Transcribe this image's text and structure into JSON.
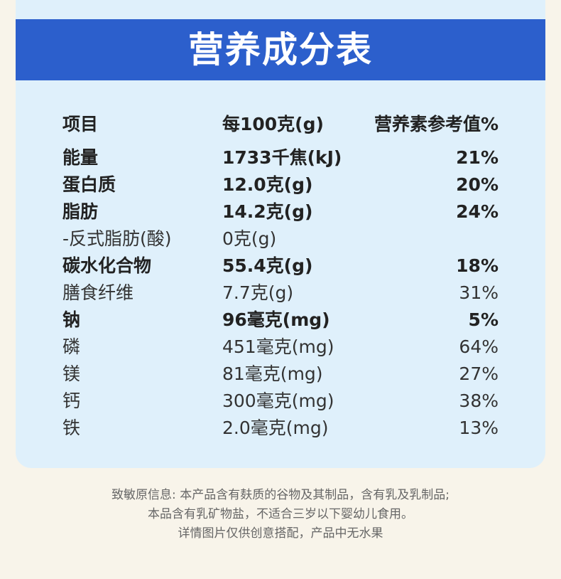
{
  "header": {
    "title": "营养成分表"
  },
  "table": {
    "header": [
      "项目",
      "每100克(g)",
      "营养素参考值%"
    ],
    "rows": [
      {
        "cells": [
          "能量",
          "1733千焦(kJ)",
          "21%"
        ],
        "bold": true
      },
      {
        "cells": [
          "蛋白质",
          "12.0克(g)",
          "20%"
        ],
        "bold": true
      },
      {
        "cells": [
          "脂肪",
          "14.2克(g)",
          "24%"
        ],
        "bold": true
      },
      {
        "cells": [
          "-反式脂肪(酸)",
          "0克(g)",
          null
        ],
        "bold": false
      },
      {
        "cells": [
          "碳水化合物",
          "55.4克(g)",
          "18%"
        ],
        "bold": true
      },
      {
        "cells": [
          "膳食纤维",
          "7.7克(g)",
          "31%"
        ],
        "bold": false
      },
      {
        "cells": [
          "钠",
          "96毫克(mg)",
          "5%"
        ],
        "bold": true
      },
      {
        "cells": [
          "磷",
          "451毫克(mg)",
          "64%"
        ],
        "bold": false
      },
      {
        "cells": [
          "镁",
          "81毫克(mg)",
          "27%"
        ],
        "bold": false
      },
      {
        "cells": [
          "钙",
          "300毫克(mg)",
          "38%"
        ],
        "bold": false
      },
      {
        "cells": [
          "铁",
          "2.0毫克(mg)",
          "13%"
        ],
        "bold": false
      }
    ]
  },
  "notes": [
    "致敏原信息: 本产品含有麸质的谷物及其制品，含有乳及乳制品;",
    "本品含有乳矿物盐，不适合三岁以下婴幼儿食用。",
    "详情图片仅供创意搭配，产品中无水果"
  ]
}
